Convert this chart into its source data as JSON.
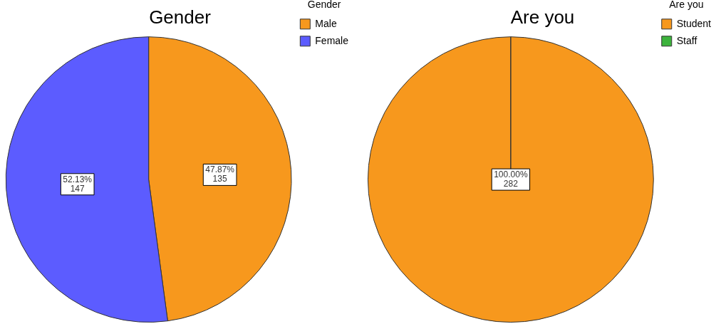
{
  "chart_data": [
    {
      "type": "pie",
      "title": "Gender",
      "legend_title": "Gender",
      "legend": "top right",
      "categories": [
        "Male",
        "Female"
      ],
      "values": [
        135,
        147
      ],
      "colors": [
        "#f7981d",
        "#5c5cff"
      ],
      "value_labels": [
        "47.87%\n135",
        "52.13%\n147"
      ]
    },
    {
      "type": "pie",
      "title": "Are you",
      "legend_title": "Are you",
      "legend": "top right",
      "categories": [
        "Student",
        "Staff"
      ],
      "values": [
        282,
        0
      ],
      "colors": [
        "#f7981d",
        "#3cb33c"
      ],
      "value_labels": [
        "100.00%\n282",
        null
      ]
    }
  ]
}
